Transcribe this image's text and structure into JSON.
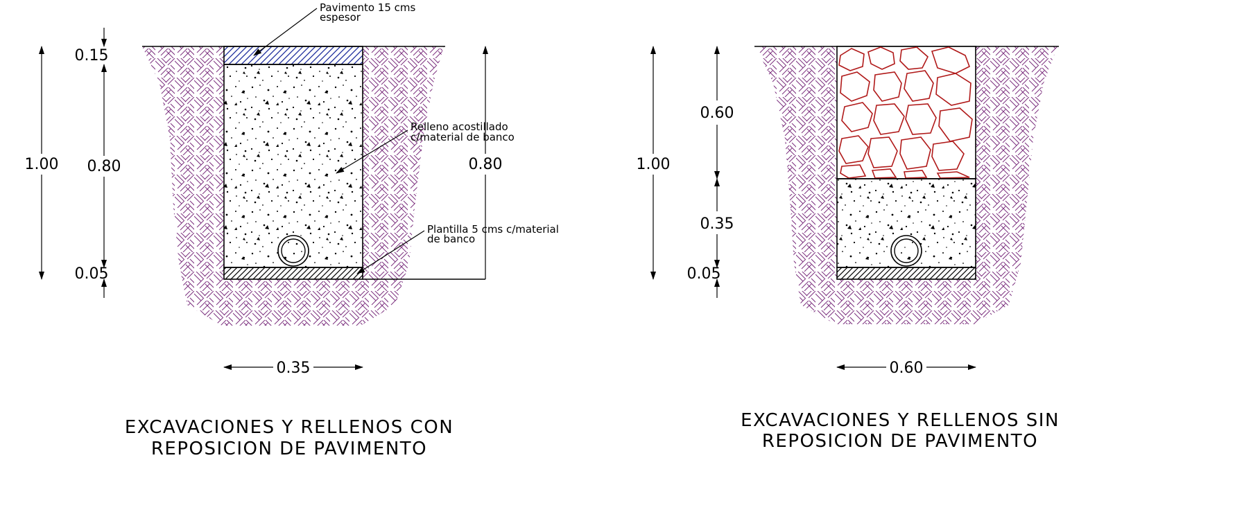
{
  "left_section": {
    "title_line1": "EXCAVACIONES Y RELLENOS CON",
    "title_line2": "REPOSICION DE PAVIMENTO",
    "dims": {
      "total_depth": "1.00",
      "pavement_thickness": "0.15",
      "fill_depth": "0.80",
      "bed_thickness": "0.05",
      "right_depth": "0.80",
      "width": "0.35"
    },
    "notes": {
      "pavement_line1": "Pavimento 15 cms",
      "pavement_line2": "espesor",
      "fill_line1": "Relleno acostillado",
      "fill_line2": "c/material de banco",
      "bed_line1": "Plantilla 5 cms c/material",
      "bed_line2": "de banco"
    }
  },
  "right_section": {
    "title_line1": "EXCAVACIONES Y RELLENOS SIN",
    "title_line2": "REPOSICION DE PAVIMENTO",
    "dims": {
      "total_depth": "1.00",
      "rock_fill_depth": "0.60",
      "fill_depth": "0.35",
      "bed_thickness": "0.05",
      "width": "0.60"
    }
  },
  "colors": {
    "soil_hatch": "#7b2f7e",
    "pavement_hatch": "#1a2a9c",
    "rock_fill": "#b01818",
    "line": "#000000"
  }
}
